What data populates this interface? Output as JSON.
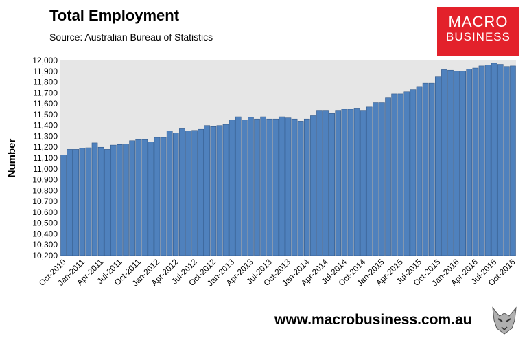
{
  "header": {
    "title": "Total Employment",
    "subtitle": "Source: Australian Bureau of Statistics"
  },
  "logo": {
    "line1": "MACRO",
    "line2": "BUSINESS"
  },
  "footer": {
    "url": "www.macrobusiness.com.au"
  },
  "colors": {
    "bar": "#4f81bd",
    "bar_edge": "#2a4f7f",
    "plot_bg": "#e6e6e6",
    "logo_bg": "#e3212b"
  },
  "chart_data": {
    "type": "bar",
    "title": "Total Employment",
    "ylabel": "Number",
    "xlabel": "",
    "ylim": [
      10200,
      12000
    ],
    "yticks": [
      "10,200",
      "10,300",
      "10,400",
      "10,500",
      "10,600",
      "10,700",
      "10,800",
      "10,900",
      "11,000",
      "11,100",
      "11,200",
      "11,300",
      "11,400",
      "11,500",
      "11,600",
      "11,700",
      "11,800",
      "11,900",
      "12,000"
    ],
    "xticks": [
      "Oct-2010",
      "Jan-2011",
      "Apr-2011",
      "Jul-2011",
      "Oct-2011",
      "Jan-2012",
      "Apr-2012",
      "Jul-2012",
      "Oct-2012",
      "Jan-2013",
      "Apr-2013",
      "Jul-2013",
      "Oct-2013",
      "Jan-2014",
      "Apr-2014",
      "Jul-2014",
      "Oct-2014",
      "Jan-2015",
      "Apr-2015",
      "Jul-2015",
      "Oct-2015",
      "Jan-2016",
      "Apr-2016",
      "Jul-2016",
      "Oct-2016"
    ],
    "grid": false,
    "legend": "none",
    "categories": [
      "Oct-2010",
      "Nov-2010",
      "Dec-2010",
      "Jan-2011",
      "Feb-2011",
      "Mar-2011",
      "Apr-2011",
      "May-2011",
      "Jun-2011",
      "Jul-2011",
      "Aug-2011",
      "Sep-2011",
      "Oct-2011",
      "Nov-2011",
      "Dec-2011",
      "Jan-2012",
      "Feb-2012",
      "Mar-2012",
      "Apr-2012",
      "May-2012",
      "Jun-2012",
      "Jul-2012",
      "Aug-2012",
      "Sep-2012",
      "Oct-2012",
      "Nov-2012",
      "Dec-2012",
      "Jan-2013",
      "Feb-2013",
      "Mar-2013",
      "Apr-2013",
      "May-2013",
      "Jun-2013",
      "Jul-2013",
      "Aug-2013",
      "Sep-2013",
      "Oct-2013",
      "Nov-2013",
      "Dec-2013",
      "Jan-2014",
      "Feb-2014",
      "Mar-2014",
      "Apr-2014",
      "May-2014",
      "Jun-2014",
      "Jul-2014",
      "Aug-2014",
      "Sep-2014",
      "Oct-2014",
      "Nov-2014",
      "Dec-2014",
      "Jan-2015",
      "Feb-2015",
      "Mar-2015",
      "Apr-2015",
      "May-2015",
      "Jun-2015",
      "Jul-2015",
      "Aug-2015",
      "Sep-2015",
      "Oct-2015",
      "Nov-2015",
      "Dec-2015",
      "Jan-2016",
      "Feb-2016",
      "Mar-2016",
      "Apr-2016",
      "May-2016",
      "Jun-2016",
      "Jul-2016",
      "Aug-2016",
      "Sep-2016",
      "Oct-2016"
    ],
    "values": [
      11130,
      11180,
      11180,
      11190,
      11195,
      11240,
      11200,
      11180,
      11220,
      11225,
      11230,
      11260,
      11270,
      11270,
      11250,
      11290,
      11290,
      11350,
      11330,
      11370,
      11350,
      11355,
      11365,
      11400,
      11390,
      11400,
      11410,
      11450,
      11480,
      11450,
      11475,
      11460,
      11480,
      11460,
      11460,
      11480,
      11470,
      11460,
      11440,
      11460,
      11490,
      11540,
      11540,
      11510,
      11540,
      11550,
      11550,
      11560,
      11540,
      11570,
      11610,
      11610,
      11660,
      11690,
      11690,
      11710,
      11730,
      11760,
      11790,
      11790,
      11850,
      11915,
      11910,
      11900,
      11900,
      11920,
      11930,
      11950,
      11960,
      11975,
      11965,
      11945,
      11950
    ]
  }
}
